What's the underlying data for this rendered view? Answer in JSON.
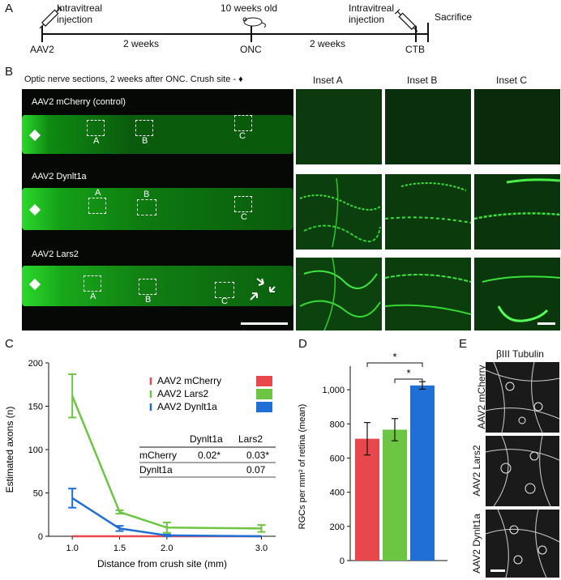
{
  "panels": {
    "A": "A",
    "B": "B",
    "C": "C",
    "D": "D",
    "E": "E"
  },
  "timeline": {
    "top_left": "Intravitreal",
    "top_left2": "injection",
    "top_mid": "10 weeks old",
    "top_right": "Intravitreal",
    "top_right2": "injection",
    "sacrifice": "Sacrifice",
    "aav2": "AAV2",
    "weeks1": "2 weeks",
    "onc": "ONC",
    "weeks2": "2 weeks",
    "ctb": "CTB"
  },
  "panelB": {
    "header": "Optic nerve sections, 2 weeks after ONC. Crush site - ♦",
    "inset_a": "Inset A",
    "inset_b": "Inset B",
    "inset_c": "Inset C",
    "row1": "AAV2 mCherry (control)",
    "row2": "AAV2 Dynlt1a",
    "row3": "AAV2 Lars2",
    "box_a": "A",
    "box_b": "B",
    "box_c": "C"
  },
  "panelE": {
    "title": "βIII Tubulin",
    "row1": "AAV2 mCherry",
    "row2": "AAV2 Lars2",
    "row3": "AAV2 Dynlt1a"
  },
  "chart_data": [
    {
      "type": "line",
      "xlabel": "Distance from crush site (mm)",
      "ylabel": "Estimated axons (n)",
      "x": [
        1.0,
        1.5,
        2.0,
        3.0
      ],
      "x_ticks": [
        "1.0",
        "1.5",
        "2.0",
        "3.0"
      ],
      "ylim": [
        0,
        200
      ],
      "y_ticks": [
        "0",
        "50",
        "100",
        "150",
        "200"
      ],
      "series": [
        {
          "name": "AAV2 mCherry",
          "color": "#e8474c",
          "values": [
            0,
            0,
            0,
            0
          ],
          "err": [
            0,
            0,
            0,
            0
          ]
        },
        {
          "name": "AAV2 Lars2",
          "color": "#6cc644",
          "values": [
            162,
            28,
            10,
            9
          ],
          "err": [
            25,
            2,
            6,
            4
          ]
        },
        {
          "name": "AAV2 Dynlt1a",
          "color": "#1f6fd6",
          "values": [
            44,
            9,
            1,
            0
          ],
          "err": [
            11,
            3,
            1,
            0
          ]
        }
      ],
      "table": {
        "headers": [
          "",
          "Dynlt1a",
          "Lars2"
        ],
        "rows": [
          [
            "mCherry",
            "0.02*",
            "0.03*"
          ],
          [
            "Dynlt1a",
            "",
            "0.07"
          ]
        ]
      }
    },
    {
      "type": "bar",
      "ylabel": "RGCs per mm² of retina (mean)",
      "categories": [
        "AAV2 mCherry",
        "AAV2 Lars2",
        "AAV2 Dynlt1a"
      ],
      "colors": [
        "#e8474c",
        "#6cc644",
        "#1f6fd6"
      ],
      "values": [
        713,
        766,
        1025
      ],
      "err": [
        95,
        65,
        22
      ],
      "ylim": [
        0,
        1100
      ],
      "y_ticks": [
        "0",
        "200",
        "400",
        "600",
        "800",
        "1,000"
      ],
      "significance": [
        "*",
        "*"
      ]
    }
  ]
}
